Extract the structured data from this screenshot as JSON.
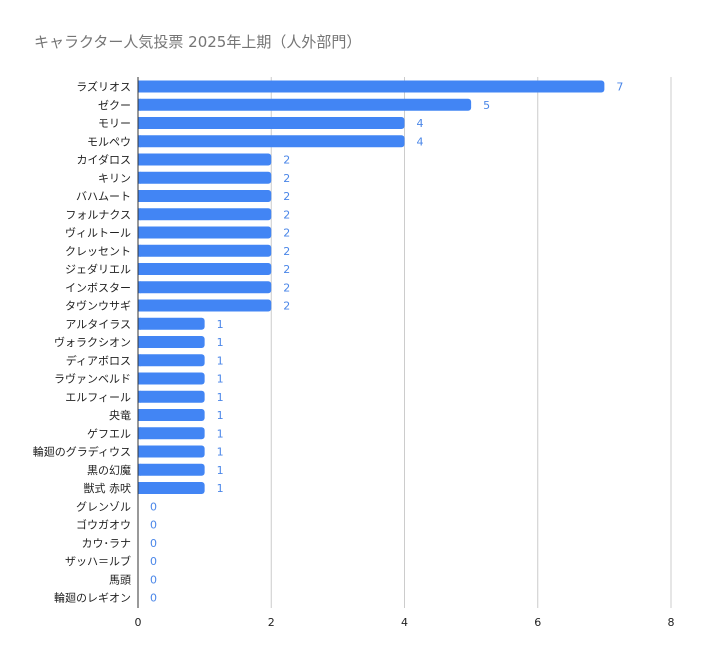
{
  "chart_data": {
    "type": "bar",
    "orientation": "horizontal",
    "title": "キャラクター人気投票 2025年上期（人外部門）",
    "categories": [
      "ラズリオス",
      "ゼクー",
      "モリー",
      "モルペウ",
      "カイダロス",
      "キリン",
      "バハムート",
      "フォルナクス",
      "ヴィルトール",
      "クレッセント",
      "ジェダリエル",
      "インボスター",
      "タヴンウサギ",
      "アルタイラス",
      "ヴォラクシオン",
      "ディアボロス",
      "ラヴァンベルド",
      "エルフィール",
      "央竜",
      "ゲフエル",
      "輪廻のグラディウス",
      "黒の幻魔",
      "獣式 赤吠",
      "グレンゾル",
      "ゴウガオウ",
      "カウ･ラナ",
      "ザッハ＝ルブ",
      "馬頭",
      "輪廻のレギオン"
    ],
    "values": [
      7,
      5,
      4,
      4,
      2,
      2,
      2,
      2,
      2,
      2,
      2,
      2,
      2,
      1,
      1,
      1,
      1,
      1,
      1,
      1,
      1,
      1,
      1,
      0,
      0,
      0,
      0,
      0,
      0
    ],
    "xlim": [
      0,
      8
    ],
    "xticks": [
      0,
      2,
      4,
      6,
      8
    ],
    "grid": true,
    "bar_color": "#4285f4",
    "label_color": "#4a86e8"
  }
}
